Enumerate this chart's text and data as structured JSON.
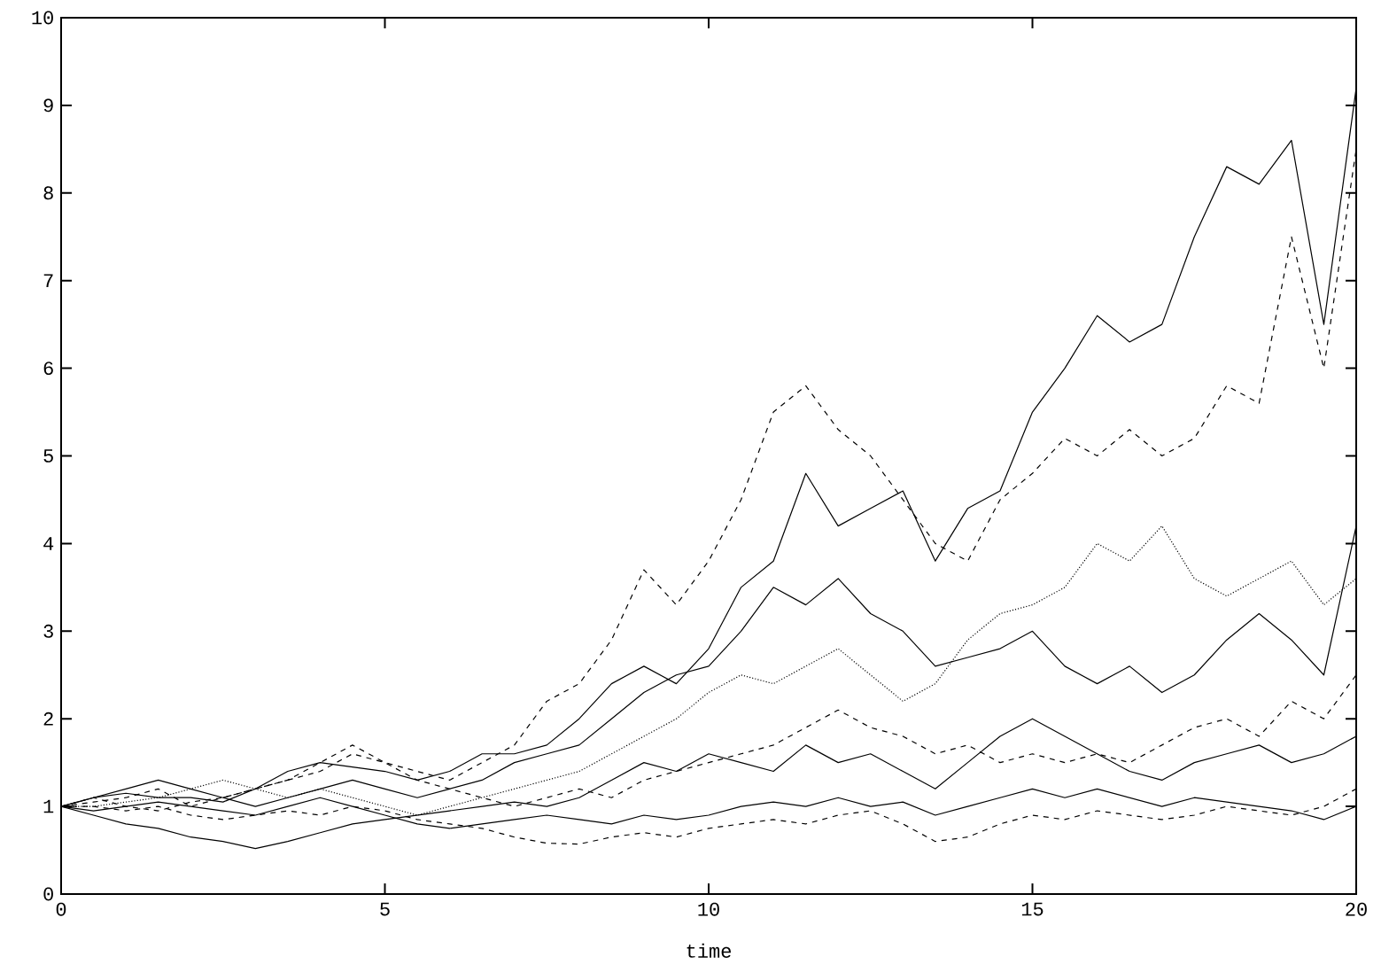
{
  "chart_data": {
    "type": "line",
    "xlabel": "time",
    "x": [
      0,
      0.5,
      1,
      1.5,
      2,
      2.5,
      3,
      3.5,
      4,
      4.5,
      5,
      5.5,
      6,
      6.5,
      7,
      7.5,
      8,
      8.5,
      9,
      9.5,
      10,
      10.5,
      11,
      11.5,
      12,
      12.5,
      13,
      13.5,
      14,
      14.5,
      15,
      15.5,
      16,
      16.5,
      17,
      17.5,
      18,
      18.5,
      19,
      19.5,
      20
    ],
    "xlim": [
      0,
      20
    ],
    "ylim": [
      0,
      10
    ],
    "xticks": [
      0,
      5,
      10,
      15,
      20
    ],
    "yticks": [
      0,
      1,
      2,
      3,
      4,
      5,
      6,
      7,
      8,
      9,
      10
    ],
    "grid": false,
    "marker": "none",
    "series": [
      {
        "color": "#000000",
        "line_style": "solid",
        "values": [
          1.0,
          1.1,
          1.15,
          1.1,
          1.1,
          1.05,
          1.2,
          1.4,
          1.5,
          1.45,
          1.4,
          1.3,
          1.4,
          1.6,
          1.6,
          1.7,
          2.0,
          2.4,
          2.6,
          2.4,
          2.8,
          3.5,
          3.8,
          4.8,
          4.2,
          4.4,
          4.6,
          3.8,
          4.4,
          4.6,
          5.5,
          6.0,
          6.6,
          6.3,
          6.5,
          7.5,
          8.3,
          8.1,
          8.6,
          6.5,
          9.2
        ]
      },
      {
        "color": "#000000",
        "line_style": "dashed",
        "values": [
          1.0,
          1.05,
          1.1,
          1.2,
          1.0,
          1.1,
          1.2,
          1.3,
          1.5,
          1.7,
          1.5,
          1.4,
          1.3,
          1.5,
          1.7,
          2.2,
          2.4,
          2.9,
          3.7,
          3.3,
          3.8,
          4.5,
          5.5,
          5.8,
          5.3,
          5.0,
          4.5,
          4.0,
          3.8,
          4.5,
          4.8,
          5.2,
          5.0,
          5.3,
          5.0,
          5.2,
          5.8,
          5.6,
          7.5,
          6.0,
          8.5
        ]
      },
      {
        "color": "#000000",
        "line_style": "solid",
        "values": [
          1.0,
          0.9,
          0.8,
          0.75,
          0.65,
          0.6,
          0.52,
          0.6,
          0.7,
          0.8,
          0.85,
          0.9,
          0.95,
          1.0,
          1.05,
          1.0,
          1.1,
          1.3,
          1.5,
          1.4,
          1.6,
          1.5,
          1.4,
          1.7,
          1.5,
          1.6,
          1.4,
          1.2,
          1.5,
          1.8,
          2.0,
          1.8,
          1.6,
          1.4,
          1.3,
          1.5,
          1.6,
          1.7,
          1.5,
          1.6,
          1.8
        ]
      },
      {
        "color": "#000000",
        "line_style": "dashed",
        "values": [
          1.0,
          1.0,
          0.95,
          1.0,
          0.9,
          0.85,
          0.9,
          0.95,
          0.9,
          1.0,
          0.95,
          0.85,
          0.8,
          0.75,
          0.65,
          0.58,
          0.57,
          0.65,
          0.7,
          0.65,
          0.75,
          0.8,
          0.85,
          0.8,
          0.9,
          0.95,
          0.8,
          0.6,
          0.65,
          0.8,
          0.9,
          0.85,
          0.95,
          0.9,
          0.85,
          0.9,
          1.0,
          0.95,
          0.9,
          1.0,
          1.2
        ]
      },
      {
        "color": "#000000",
        "line_style": "solid",
        "values": [
          1.0,
          1.1,
          1.2,
          1.3,
          1.2,
          1.1,
          1.0,
          1.1,
          1.2,
          1.3,
          1.2,
          1.1,
          1.2,
          1.3,
          1.5,
          1.6,
          1.7,
          2.0,
          2.3,
          2.5,
          2.6,
          3.0,
          3.5,
          3.3,
          3.6,
          3.2,
          3.0,
          2.6,
          2.7,
          2.8,
          3.0,
          2.6,
          2.4,
          2.6,
          2.3,
          2.5,
          2.9,
          3.2,
          2.9,
          2.5,
          4.2
        ]
      },
      {
        "color": "#000000",
        "line_style": "dotted",
        "values": [
          1.0,
          1.0,
          1.05,
          1.1,
          1.2,
          1.3,
          1.2,
          1.1,
          1.2,
          1.1,
          1.0,
          0.9,
          1.0,
          1.1,
          1.2,
          1.3,
          1.4,
          1.6,
          1.8,
          2.0,
          2.3,
          2.5,
          2.4,
          2.6,
          2.8,
          2.5,
          2.2,
          2.4,
          2.9,
          3.2,
          3.3,
          3.5,
          4.0,
          3.8,
          4.2,
          3.6,
          3.4,
          3.6,
          3.8,
          3.3,
          3.6
        ]
      },
      {
        "color": "#000000",
        "line_style": "solid",
        "values": [
          1.0,
          0.95,
          1.0,
          1.05,
          1.0,
          0.95,
          0.9,
          1.0,
          1.1,
          1.0,
          0.9,
          0.8,
          0.75,
          0.8,
          0.85,
          0.9,
          0.85,
          0.8,
          0.9,
          0.85,
          0.9,
          1.0,
          1.05,
          1.0,
          1.1,
          1.0,
          1.05,
          0.9,
          1.0,
          1.1,
          1.2,
          1.1,
          1.2,
          1.1,
          1.0,
          1.1,
          1.05,
          1.0,
          0.95,
          0.85,
          1.0
        ]
      },
      {
        "color": "#000000",
        "line_style": "dashed",
        "values": [
          1.0,
          1.1,
          1.0,
          0.95,
          1.05,
          1.1,
          1.2,
          1.3,
          1.4,
          1.6,
          1.5,
          1.3,
          1.2,
          1.1,
          1.0,
          1.1,
          1.2,
          1.1,
          1.3,
          1.4,
          1.5,
          1.6,
          1.7,
          1.9,
          2.1,
          1.9,
          1.8,
          1.6,
          1.7,
          1.5,
          1.6,
          1.5,
          1.6,
          1.5,
          1.7,
          1.9,
          2.0,
          1.8,
          2.2,
          2.0,
          2.5
        ]
      }
    ]
  }
}
